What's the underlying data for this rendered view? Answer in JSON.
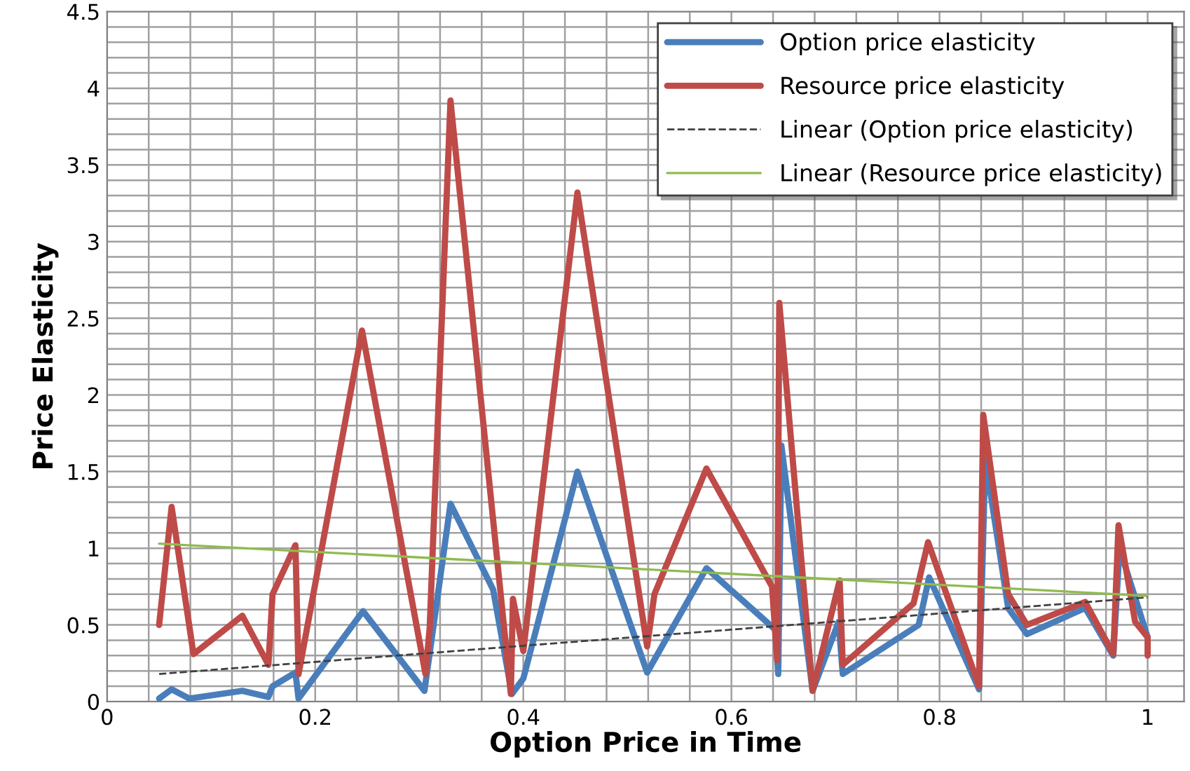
{
  "chart_data": {
    "type": "line",
    "xlabel": "Option Price in Time",
    "ylabel": "Price Elasticity",
    "xlim": [
      0,
      1.035
    ],
    "ylim": [
      0,
      4.5
    ],
    "xticks": [
      0,
      0.2,
      0.4,
      0.6,
      0.8,
      1
    ],
    "yticks": [
      0,
      0.5,
      1,
      1.5,
      2,
      2.5,
      3,
      3.5,
      4,
      4.5
    ],
    "grid": true,
    "legend": "top right",
    "marker": "none",
    "series": [
      {
        "name": "Option price elasticity",
        "color": "#4a7ebb",
        "line_style": "solid",
        "x": [
          0.05,
          0.062,
          0.079,
          0.13,
          0.155,
          0.159,
          0.181,
          0.184,
          0.246,
          0.305,
          0.33,
          0.371,
          0.389,
          0.4,
          0.452,
          0.519,
          0.576,
          0.642,
          0.645,
          0.648,
          0.678,
          0.703,
          0.707,
          0.78,
          0.79,
          0.838,
          0.844,
          0.866,
          0.884,
          0.94,
          0.967,
          0.973,
          1.0
        ],
        "values": [
          0.02,
          0.08,
          0.02,
          0.07,
          0.03,
          0.1,
          0.19,
          0.02,
          0.59,
          0.07,
          1.29,
          0.73,
          0.05,
          0.15,
          1.5,
          0.19,
          0.87,
          0.47,
          0.18,
          1.67,
          0.07,
          0.52,
          0.18,
          0.5,
          0.81,
          0.08,
          1.58,
          0.61,
          0.44,
          0.61,
          0.3,
          1.0,
          0.42
        ]
      },
      {
        "name": "Resource price elasticity",
        "color": "#be4b48",
        "line_style": "solid",
        "x": [
          0.05,
          0.062,
          0.083,
          0.13,
          0.155,
          0.159,
          0.181,
          0.184,
          0.245,
          0.306,
          0.31,
          0.33,
          0.388,
          0.39,
          0.4,
          0.452,
          0.519,
          0.526,
          0.576,
          0.639,
          0.644,
          0.646,
          0.678,
          0.704,
          0.707,
          0.775,
          0.789,
          0.838,
          0.842,
          0.866,
          0.884,
          0.94,
          0.967,
          0.972,
          0.988,
          1.0,
          1.0
        ],
        "values": [
          0.5,
          1.27,
          0.31,
          0.56,
          0.24,
          0.7,
          1.02,
          0.18,
          2.42,
          0.18,
          0.48,
          3.92,
          0.05,
          0.67,
          0.33,
          3.32,
          0.36,
          0.7,
          1.52,
          0.75,
          0.27,
          2.6,
          0.07,
          0.79,
          0.24,
          0.64,
          1.04,
          0.1,
          1.87,
          0.7,
          0.5,
          0.65,
          0.31,
          1.15,
          0.52,
          0.42,
          0.3
        ]
      },
      {
        "name": "Linear (Option price elasticity)",
        "color": "#404040",
        "line_style": "dashed",
        "x": [
          0.05,
          1.0
        ],
        "values": [
          0.18,
          0.68
        ]
      },
      {
        "name": "Linear (Resource price elasticity)",
        "color": "#8fbb4f",
        "line_style": "solid",
        "x": [
          0.05,
          1.0
        ],
        "values": [
          1.03,
          0.69
        ]
      }
    ]
  }
}
